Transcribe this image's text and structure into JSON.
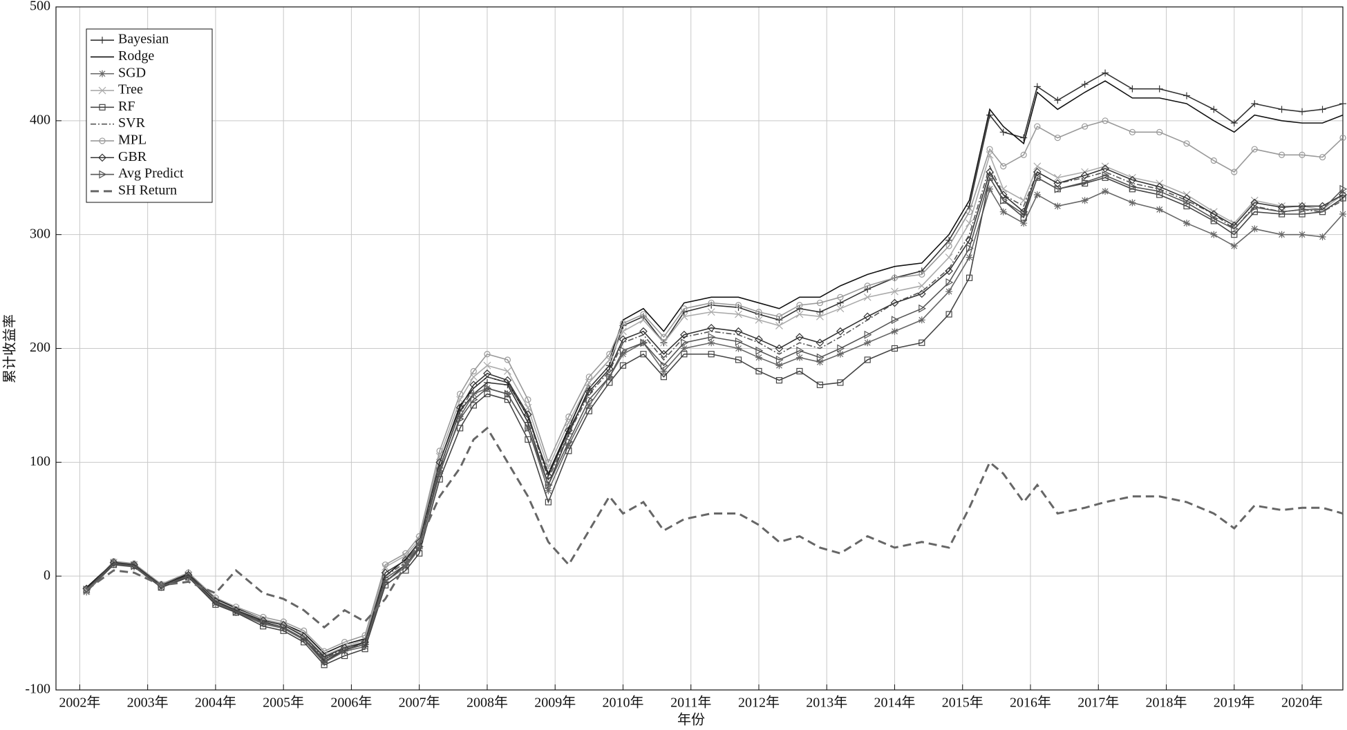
{
  "chart_data": {
    "type": "line",
    "xlabel": "年份",
    "ylabel": "累计收益率",
    "xlim": [
      2001.65,
      2020.6
    ],
    "ylim": [
      -100,
      500
    ],
    "xticks": [
      {
        "value": 2002,
        "label": "2002年"
      },
      {
        "value": 2003,
        "label": "2003年"
      },
      {
        "value": 2004,
        "label": "2004年"
      },
      {
        "value": 2005,
        "label": "2005年"
      },
      {
        "value": 2006,
        "label": "2006年"
      },
      {
        "value": 2007,
        "label": "2007年"
      },
      {
        "value": 2008,
        "label": "2008年"
      },
      {
        "value": 2009,
        "label": "2009年"
      },
      {
        "value": 2010,
        "label": "2010年"
      },
      {
        "value": 2011,
        "label": "2011年"
      },
      {
        "value": 2012,
        "label": "2012年"
      },
      {
        "value": 2013,
        "label": "2013年"
      },
      {
        "value": 2014,
        "label": "2014年"
      },
      {
        "value": 2015,
        "label": "2015年"
      },
      {
        "value": 2016,
        "label": "2016年"
      },
      {
        "value": 2017,
        "label": "2017年"
      },
      {
        "value": 2018,
        "label": "2018年"
      },
      {
        "value": 2019,
        "label": "2019年"
      },
      {
        "value": 2020,
        "label": "2020年"
      }
    ],
    "yticks": [
      -100,
      0,
      100,
      200,
      300,
      400,
      500
    ],
    "grid": true,
    "legend": "upper left",
    "x": [
      2002.1,
      2002.5,
      2002.8,
      2003.2,
      2003.6,
      2004.0,
      2004.3,
      2004.7,
      2005.0,
      2005.3,
      2005.6,
      2005.9,
      2006.2,
      2006.5,
      2006.8,
      2007.0,
      2007.3,
      2007.6,
      2007.8,
      2008.0,
      2008.3,
      2008.6,
      2008.9,
      2009.2,
      2009.5,
      2009.8,
      2010.0,
      2010.3,
      2010.6,
      2010.9,
      2011.3,
      2011.7,
      2012.0,
      2012.3,
      2012.6,
      2012.9,
      2013.2,
      2013.6,
      2014.0,
      2014.4,
      2014.8,
      2015.1,
      2015.4,
      2015.6,
      2015.9,
      2016.1,
      2016.4,
      2016.8,
      2017.1,
      2017.5,
      2017.9,
      2018.3,
      2018.7,
      2019.0,
      2019.3,
      2019.7,
      2020.0,
      2020.3,
      2020.6
    ],
    "series": [
      {
        "name": "Bayesian",
        "color": "#333333",
        "marker": "plus",
        "dash": "solid",
        "values": [
          -11,
          11,
          9,
          -9,
          3,
          -21,
          -30,
          -40,
          -45,
          -55,
          -75,
          -65,
          -58,
          -5,
          10,
          25,
          95,
          145,
          160,
          170,
          168,
          135,
          80,
          125,
          165,
          185,
          220,
          228,
          205,
          232,
          238,
          236,
          230,
          225,
          235,
          232,
          240,
          252,
          262,
          268,
          295,
          325,
          405,
          390,
          385,
          430,
          418,
          432,
          442,
          428,
          428,
          422,
          410,
          398,
          415,
          410,
          408,
          410,
          415
        ]
      },
      {
        "name": "Rodge",
        "color": "#111111",
        "marker": "none",
        "dash": "solid",
        "values": [
          -10,
          12,
          10,
          -8,
          2,
          -20,
          -28,
          -38,
          -42,
          -50,
          -68,
          -60,
          -55,
          0,
          15,
          30,
          100,
          150,
          165,
          175,
          170,
          140,
          90,
          130,
          170,
          190,
          225,
          235,
          215,
          240,
          245,
          245,
          240,
          235,
          245,
          245,
          255,
          265,
          272,
          275,
          300,
          330,
          410,
          395,
          380,
          425,
          410,
          425,
          435,
          420,
          420,
          415,
          400,
          390,
          405,
          400,
          398,
          398,
          405
        ]
      },
      {
        "name": "SGD",
        "color": "#666666",
        "marker": "star",
        "dash": "solid",
        "values": [
          -14,
          10,
          8,
          -10,
          -1,
          -24,
          -32,
          -42,
          -46,
          -56,
          -76,
          -66,
          -62,
          -5,
          8,
          24,
          90,
          140,
          160,
          165,
          160,
          130,
          75,
          115,
          150,
          175,
          195,
          205,
          180,
          200,
          205,
          200,
          192,
          185,
          192,
          188,
          195,
          205,
          215,
          225,
          250,
          280,
          340,
          320,
          310,
          335,
          325,
          330,
          338,
          328,
          322,
          310,
          300,
          290,
          305,
          300,
          300,
          298,
          318
        ]
      },
      {
        "name": "Tree",
        "color": "#aaaaaa",
        "marker": "cross",
        "dash": "solid",
        "values": [
          -13,
          12,
          10,
          -8,
          1,
          -21,
          -29,
          -38,
          -42,
          -52,
          -70,
          -62,
          -56,
          8,
          18,
          32,
          105,
          155,
          175,
          185,
          180,
          148,
          95,
          135,
          170,
          190,
          215,
          225,
          205,
          228,
          232,
          230,
          225,
          220,
          230,
          228,
          235,
          245,
          250,
          255,
          280,
          310,
          370,
          340,
          330,
          360,
          350,
          355,
          360,
          350,
          345,
          335,
          320,
          310,
          330,
          325,
          325,
          322,
          335
        ]
      },
      {
        "name": "RF",
        "color": "#444444",
        "marker": "square",
        "dash": "solid",
        "values": [
          -12,
          10,
          9,
          -10,
          -1,
          -25,
          -32,
          -44,
          -48,
          -58,
          -78,
          -70,
          -64,
          -8,
          5,
          20,
          85,
          130,
          150,
          160,
          155,
          120,
          65,
          110,
          145,
          170,
          185,
          195,
          175,
          195,
          195,
          190,
          180,
          172,
          180,
          168,
          170,
          190,
          200,
          205,
          230,
          262,
          350,
          330,
          315,
          350,
          340,
          345,
          350,
          340,
          335,
          325,
          312,
          300,
          320,
          318,
          318,
          320,
          332
        ]
      },
      {
        "name": "SVR",
        "color": "#555555",
        "marker": "none",
        "dash": "dashdot",
        "values": [
          -12,
          11,
          9,
          -9,
          0,
          -23,
          -31,
          -40,
          -45,
          -55,
          -72,
          -64,
          -60,
          0,
          12,
          28,
          95,
          145,
          165,
          175,
          170,
          140,
          85,
          125,
          160,
          180,
          205,
          212,
          190,
          210,
          215,
          212,
          205,
          195,
          205,
          200,
          210,
          225,
          240,
          250,
          270,
          300,
          360,
          335,
          325,
          355,
          345,
          350,
          355,
          345,
          340,
          330,
          318,
          305,
          325,
          320,
          322,
          320,
          330
        ]
      },
      {
        "name": "MPL",
        "color": "#999999",
        "marker": "circle",
        "dash": "solid",
        "values": [
          -12,
          13,
          11,
          -7,
          3,
          -19,
          -27,
          -36,
          -40,
          -48,
          -66,
          -58,
          -52,
          10,
          20,
          35,
          110,
          160,
          180,
          195,
          190,
          155,
          100,
          140,
          175,
          195,
          222,
          230,
          210,
          235,
          240,
          238,
          232,
          228,
          238,
          240,
          245,
          255,
          262,
          265,
          290,
          320,
          375,
          360,
          370,
          395,
          385,
          395,
          400,
          390,
          390,
          380,
          365,
          355,
          375,
          370,
          370,
          368,
          385
        ]
      },
      {
        "name": "GBR",
        "color": "#333333",
        "marker": "diamond",
        "dash": "solid",
        "values": [
          -11,
          12,
          10,
          -8,
          1,
          -22,
          -30,
          -39,
          -43,
          -53,
          -71,
          -63,
          -58,
          3,
          14,
          30,
          100,
          148,
          168,
          178,
          172,
          142,
          88,
          128,
          162,
          182,
          208,
          215,
          195,
          212,
          218,
          215,
          208,
          200,
          210,
          205,
          215,
          228,
          240,
          248,
          268,
          295,
          355,
          335,
          320,
          355,
          345,
          352,
          358,
          348,
          342,
          332,
          318,
          308,
          328,
          324,
          325,
          325,
          335
        ]
      },
      {
        "name": "Avg Predict",
        "color": "#555555",
        "marker": "triangle",
        "dash": "solid",
        "values": [
          -12,
          11,
          9,
          -9,
          0,
          -23,
          -31,
          -41,
          -45,
          -55,
          -73,
          -65,
          -60,
          -2,
          10,
          26,
          92,
          138,
          155,
          165,
          160,
          130,
          80,
          118,
          155,
          175,
          198,
          205,
          185,
          205,
          210,
          206,
          198,
          190,
          198,
          192,
          200,
          212,
          225,
          235,
          258,
          288,
          350,
          330,
          318,
          350,
          340,
          346,
          352,
          342,
          338,
          328,
          314,
          305,
          324,
          320,
          322,
          322,
          340
        ]
      },
      {
        "name": "SH Return",
        "color": "#666666",
        "marker": "none",
        "dash": "dashed",
        "values": [
          -12,
          5,
          3,
          -8,
          -5,
          -15,
          5,
          -15,
          -20,
          -30,
          -45,
          -30,
          -40,
          -20,
          10,
          30,
          70,
          95,
          120,
          130,
          100,
          70,
          30,
          10,
          40,
          70,
          55,
          65,
          40,
          50,
          55,
          55,
          45,
          30,
          35,
          25,
          20,
          35,
          25,
          30,
          25,
          60,
          100,
          90,
          65,
          80,
          55,
          60,
          65,
          70,
          70,
          65,
          55,
          42,
          62,
          58,
          60,
          60,
          55
        ]
      }
    ]
  }
}
